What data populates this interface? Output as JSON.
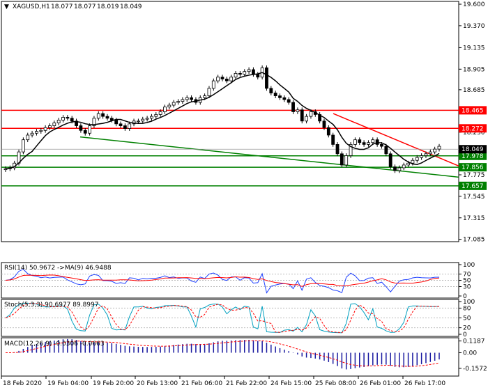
{
  "symbol_header": {
    "symbol": "XAGUSD,H1",
    "open": "18.077",
    "high": "18.077",
    "low": "18.019",
    "close": "18.049"
  },
  "chart_data": [
    {
      "type": "candlestick",
      "title": "XAGUSD,H1",
      "ylim": [
        17.06,
        19.63
      ],
      "y_ticks": [
        "19.600",
        "19.370",
        "19.135",
        "18.905",
        "18.685",
        "18.465",
        "18.230",
        "17.995",
        "17.775",
        "17.545",
        "17.315",
        "17.085"
      ],
      "x_ticks": [
        "18 Feb 2020",
        "19 Feb 04:00",
        "19 Feb 20:00",
        "20 Feb 13:00",
        "21 Feb 06:00",
        "21 Feb 22:00",
        "24 Feb 15:00",
        "25 Feb 08:00",
        "26 Feb 01:00",
        "26 Feb 17:00"
      ],
      "current_price": "18.049",
      "levels": [
        {
          "value": "18.465",
          "color": "#ff0000"
        },
        {
          "value": "18.272",
          "color": "#ff0000"
        },
        {
          "value": "17.978",
          "color": "#008000"
        },
        {
          "value": "17.856",
          "color": "#008000"
        },
        {
          "value": "17.657",
          "color": "#008000"
        }
      ],
      "close_series": [
        17.84,
        17.85,
        17.9,
        18.02,
        18.15,
        18.2,
        18.22,
        18.24,
        18.25,
        18.28,
        18.3,
        18.33,
        18.36,
        18.39,
        18.38,
        18.35,
        18.3,
        18.25,
        18.22,
        18.3,
        18.38,
        18.43,
        18.4,
        18.38,
        18.36,
        18.32,
        18.3,
        18.27,
        18.32,
        18.35,
        18.35,
        18.37,
        18.38,
        18.4,
        18.42,
        18.45,
        18.5,
        18.52,
        18.55,
        18.56,
        18.58,
        18.6,
        18.58,
        18.55,
        18.6,
        18.62,
        18.7,
        18.78,
        18.82,
        18.8,
        18.78,
        18.82,
        18.86,
        18.85,
        18.88,
        18.9,
        18.85,
        18.82,
        18.92,
        18.7,
        18.65,
        18.62,
        18.6,
        18.58,
        18.55,
        18.45,
        18.47,
        18.35,
        18.4,
        18.45,
        18.42,
        18.35,
        18.28,
        18.2,
        18.1,
        18.0,
        17.88,
        17.98,
        18.1,
        18.15,
        18.12,
        18.1,
        18.12,
        18.15,
        18.1,
        18.08,
        18.0,
        17.86,
        17.82,
        17.85,
        17.88,
        17.9,
        17.93,
        17.96,
        17.98,
        18.0,
        18.02,
        18.05,
        18.08
      ],
      "series": [
        {
          "name": "RSI(14)",
          "value": "50.9672",
          "color": "#1e40ff"
        },
        {
          "name": "MA(9)",
          "value": "46.9488",
          "color": "#ff0000"
        },
        {
          "name": "Stoch(5,3,3)",
          "value": "90.6977",
          "color": "#00a0c0"
        },
        {
          "name": "Stoch signal",
          "value": "89.8997",
          "color": "#ff0000"
        },
        {
          "name": "MACD(12,26,9)",
          "value": "-0.0306",
          "color": "#1a1aa0"
        },
        {
          "name": "MACD signal",
          "value": "-0.0663",
          "color": "#ff0000"
        }
      ]
    },
    {
      "type": "line",
      "title": "RSI(14) 50.9672 ->MA(9) 46.9488",
      "ylim": [
        0,
        100
      ],
      "y_ticks": [
        "100",
        "70",
        "50",
        "30",
        "0"
      ]
    },
    {
      "type": "line",
      "title": "Stoch(5,3,3) 90.6977 89.8997",
      "ylim": [
        0,
        100
      ],
      "y_ticks": [
        "100",
        "80",
        "50",
        "20",
        "0"
      ]
    },
    {
      "type": "bar",
      "title": "MACD(12,26,9) -0.0306 -0.0663",
      "ylim": [
        -0.2,
        0.13
      ],
      "y_ticks": [
        "0.1187",
        "0.00",
        "-0.1572"
      ]
    }
  ]
}
